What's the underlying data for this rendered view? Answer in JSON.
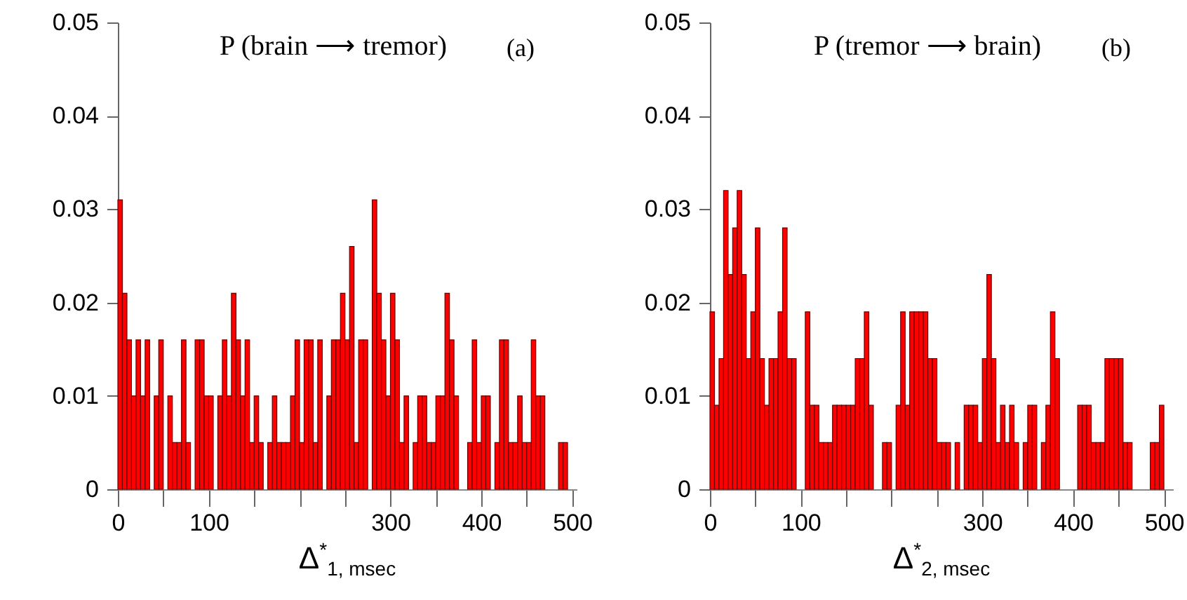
{
  "chart_data": [
    {
      "type": "histogram",
      "title": "P (brain ⟶ tremor)",
      "annotations": [
        "(a)"
      ],
      "xlabel": "Δ$^{*}$$_{1, msec}$",
      "color": "#ff0000",
      "bins": [
        0,
        5,
        10,
        15,
        20,
        25,
        30,
        35,
        40,
        45,
        50,
        55,
        60,
        65,
        70,
        75,
        80,
        85,
        90,
        95,
        100,
        105,
        110,
        115,
        120,
        125,
        130,
        135,
        140,
        145,
        150,
        155,
        160,
        165,
        170,
        175,
        180,
        185,
        190,
        195,
        200,
        205,
        210,
        215,
        220,
        225,
        230,
        235,
        240,
        245,
        250,
        255,
        260,
        265,
        270,
        275,
        280,
        285,
        290,
        295,
        300,
        305,
        310,
        315,
        320,
        325,
        330,
        335,
        340,
        345,
        350,
        355,
        360,
        365,
        370,
        375,
        380,
        385,
        390,
        395,
        400,
        405,
        410,
        415,
        420,
        425,
        430,
        435,
        440,
        445,
        450,
        455,
        460,
        465,
        470,
        475,
        480,
        485,
        490,
        495,
        500
      ],
      "values": [
        0.031,
        0.021,
        0.016,
        0.01,
        0.016,
        0.01,
        0.016,
        0,
        0.01,
        0.016,
        0,
        0.01,
        0.005,
        0.005,
        0.016,
        0.005,
        0,
        0.016,
        0.016,
        0.01,
        0.01,
        0,
        0.01,
        0.016,
        0.01,
        0.021,
        0.016,
        0.01,
        0.016,
        0.005,
        0.01,
        0.005,
        0,
        0.005,
        0.01,
        0.005,
        0.005,
        0.005,
        0.01,
        0.016,
        0.005,
        0.016,
        0.016,
        0.005,
        0.016,
        0,
        0.01,
        0.016,
        0.016,
        0.021,
        0.016,
        0.026,
        0.005,
        0.016,
        0.016,
        0,
        0.031,
        0.021,
        0.016,
        0.01,
        0.021,
        0.016,
        0.005,
        0.01,
        0,
        0.005,
        0.01,
        0.01,
        0.005,
        0.005,
        0.01,
        0.01,
        0.021,
        0.016,
        0.01,
        0,
        0,
        0.005,
        0.016,
        0.005,
        0.01,
        0.01,
        0,
        0.005,
        0.016,
        0.016,
        0.005,
        0.005,
        0.01,
        0.005,
        0.005,
        0.016,
        0.01,
        0.01,
        0,
        0,
        0,
        0.005,
        0.005,
        0
      ],
      "xlim": [
        0,
        505
      ],
      "xticks": [
        0,
        {
          "value": 50,
          "label": null
        },
        100,
        {
          "value": 150,
          "label": null
        },
        {
          "value": 200,
          "label": null
        },
        {
          "value": 250,
          "label": null
        },
        300,
        {
          "value": 350,
          "label": null
        },
        400,
        {
          "value": 450,
          "label": null
        },
        500
      ],
      "ylim": [
        0,
        0.05
      ],
      "yticks": [
        0,
        0.01,
        0.02,
        0.03,
        0.04,
        0.05
      ]
    },
    {
      "type": "histogram",
      "title": "P (tremor ⟶ brain)",
      "annotations": [
        "(b)"
      ],
      "xlabel": "Δ$^{*}$$_{2, msec}$",
      "color": "#ff0000",
      "bins": [
        0,
        5,
        10,
        15,
        20,
        25,
        30,
        35,
        40,
        45,
        50,
        55,
        60,
        65,
        70,
        75,
        80,
        85,
        90,
        95,
        100,
        105,
        110,
        115,
        120,
        125,
        130,
        135,
        140,
        145,
        150,
        155,
        160,
        165,
        170,
        175,
        180,
        185,
        190,
        195,
        200,
        205,
        210,
        215,
        220,
        225,
        230,
        235,
        240,
        245,
        250,
        255,
        260,
        265,
        270,
        275,
        280,
        285,
        290,
        295,
        300,
        305,
        310,
        315,
        320,
        325,
        330,
        335,
        340,
        345,
        350,
        355,
        360,
        365,
        370,
        375,
        380,
        385,
        390,
        395,
        400,
        405,
        410,
        415,
        420,
        425,
        430,
        435,
        440,
        445,
        450,
        455,
        460,
        465,
        470,
        475,
        480,
        485,
        490,
        495,
        500
      ],
      "values": [
        0.019,
        0.009,
        0.014,
        0.032,
        0.023,
        0.028,
        0.032,
        0.023,
        0.014,
        0.019,
        0.028,
        0.014,
        0.009,
        0.014,
        0.014,
        0.019,
        0.028,
        0.014,
        0.014,
        0,
        0,
        0.019,
        0.009,
        0.009,
        0.005,
        0.005,
        0.005,
        0.009,
        0.009,
        0.009,
        0.009,
        0.009,
        0.014,
        0.014,
        0.019,
        0.009,
        0,
        0,
        0.005,
        0.005,
        0,
        0.009,
        0.019,
        0.009,
        0.019,
        0.019,
        0.019,
        0.019,
        0.014,
        0.014,
        0.005,
        0.005,
        0.005,
        0,
        0.005,
        0,
        0.009,
        0.009,
        0.009,
        0.005,
        0.014,
        0.023,
        0.014,
        0.005,
        0.009,
        0.005,
        0.009,
        0.005,
        0,
        0.005,
        0.009,
        0.009,
        0,
        0.005,
        0.009,
        0.019,
        0.014,
        0,
        0,
        0,
        0,
        0.009,
        0.009,
        0.009,
        0.005,
        0.005,
        0.005,
        0.014,
        0.014,
        0.014,
        0.014,
        0.005,
        0.005,
        0,
        0,
        0,
        0,
        0.005,
        0.005,
        0.009
      ],
      "xlim": [
        0,
        510
      ],
      "xticks": [
        0,
        {
          "value": 50,
          "label": null
        },
        100,
        {
          "value": 150,
          "label": null
        },
        {
          "value": 200,
          "label": null
        },
        {
          "value": 250,
          "label": null
        },
        300,
        {
          "value": 350,
          "label": null
        },
        400,
        {
          "value": 450,
          "label": null
        },
        500
      ],
      "ylim": [
        0,
        0.05
      ],
      "yticks": [
        0,
        0.01,
        0.02,
        0.03,
        0.04,
        0.05
      ]
    }
  ]
}
